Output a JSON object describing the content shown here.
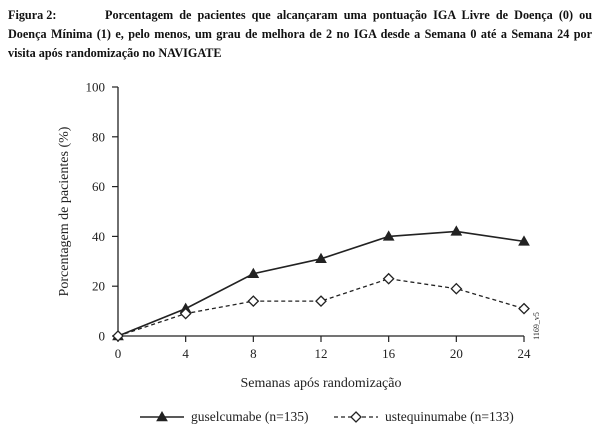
{
  "figure": {
    "number_label": "Figura 2:",
    "caption": "Porcentagem de pacientes que alcançaram uma pontuação IGA Livre de Doença (0) ou Doença Mínima (1) e, pelo menos, um grau de melhora de 2 no IGA desde a Semana 0 até a Semana 24 por visita após randomização no NAVIGATE",
    "code": "1169_v5"
  },
  "chart_data": {
    "type": "line",
    "xlabel": "Semanas após randomização",
    "ylabel": "Porcentagem de pacientes (%)",
    "xlim": [
      0,
      24
    ],
    "ylim": [
      0,
      100
    ],
    "x": [
      0,
      4,
      8,
      12,
      16,
      20,
      24
    ],
    "x_ticks": [
      "0",
      "4",
      "8",
      "12",
      "16",
      "20",
      "24"
    ],
    "y_ticks": [
      "0",
      "20",
      "40",
      "60",
      "80",
      "100"
    ],
    "grid": false,
    "legend_position": "bottom",
    "series": [
      {
        "name": "guselcumabe (n=135)",
        "values": [
          0,
          11,
          25,
          31,
          40,
          42,
          38
        ],
        "line_style": "solid",
        "marker": "filled-triangle",
        "color": "#222222"
      },
      {
        "name": "ustequinumabe (n=133)",
        "values": [
          0,
          9,
          14,
          14,
          23,
          19,
          11
        ],
        "line_style": "dashed",
        "marker": "open-diamond",
        "color": "#222222"
      }
    ]
  }
}
